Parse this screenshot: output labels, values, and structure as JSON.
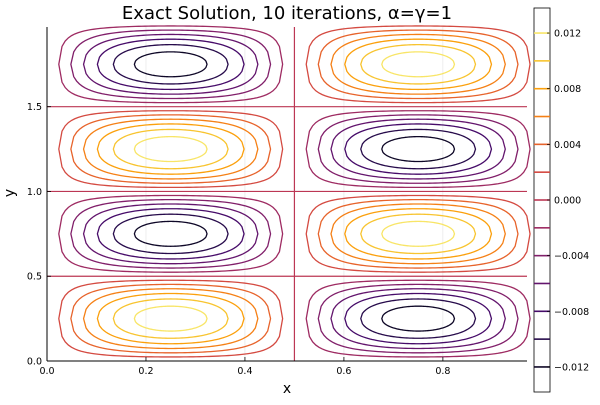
{
  "chart_data": {
    "type": "contour",
    "title": "Exact Solution, 10 iterations, α=γ=1",
    "xlabel": "x",
    "ylabel": "y",
    "xlim": [
      0.0,
      0.97
    ],
    "ylim": [
      0.0,
      1.97
    ],
    "xticks": [
      0.0,
      0.2,
      0.4,
      0.6,
      0.8
    ],
    "xtick_labels": [
      "0.0",
      "0.2",
      "0.4",
      "0.6",
      "0.8"
    ],
    "yticks": [
      0.0,
      0.5,
      1.0,
      1.5
    ],
    "ytick_labels": [
      "0.0",
      "0.5",
      "1.0",
      "1.5"
    ],
    "grid": true,
    "function": "A · sin(2πx) · sin(2πy)",
    "amplitude": 0.0134,
    "levels": [
      -0.012,
      -0.01,
      -0.008,
      -0.006,
      -0.004,
      -0.002,
      0.0,
      0.002,
      0.004,
      0.006,
      0.008,
      0.01,
      0.012
    ],
    "colorbar": {
      "range": [
        -0.0138,
        0.0138
      ],
      "ticks": [
        0.012,
        0.008,
        0.004,
        0.0,
        -0.004,
        -0.008,
        -0.012
      ],
      "tick_labels": [
        "0.012",
        "0.008",
        "0.004",
        "0.000",
        "−0.004",
        "−0.008",
        "−0.012"
      ],
      "colormap": "inferno"
    },
    "cells": [
      {
        "x_center": 0.25,
        "y_center": 0.25,
        "sign": "positive"
      },
      {
        "x_center": 0.75,
        "y_center": 0.25,
        "sign": "negative"
      },
      {
        "x_center": 0.25,
        "y_center": 0.75,
        "sign": "negative"
      },
      {
        "x_center": 0.75,
        "y_center": 0.75,
        "sign": "positive"
      },
      {
        "x_center": 0.25,
        "y_center": 1.25,
        "sign": "positive"
      },
      {
        "x_center": 0.75,
        "y_center": 1.25,
        "sign": "negative"
      },
      {
        "x_center": 0.25,
        "y_center": 1.75,
        "sign": "negative"
      },
      {
        "x_center": 0.75,
        "y_center": 1.75,
        "sign": "positive"
      }
    ],
    "zero_lines": {
      "x": [
        0.5
      ],
      "y": [
        0.5,
        1.0,
        1.5
      ]
    }
  }
}
